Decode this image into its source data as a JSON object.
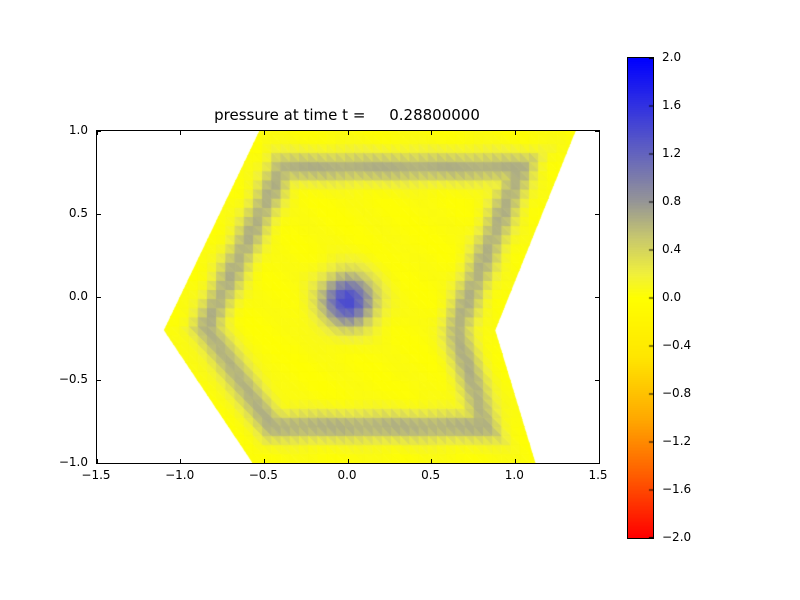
{
  "figure": {
    "background": "#ffffff"
  },
  "chart_data": {
    "type": "heatmap",
    "title": "pressure at time t =     0.28800000",
    "xlabel": "",
    "ylabel": "",
    "xlim": [
      -1.5,
      1.5
    ],
    "ylim": [
      -1.0,
      1.0
    ],
    "xticks": [
      -1.5,
      -1.0,
      -0.5,
      0.0,
      0.5,
      1.0,
      1.5
    ],
    "yticks": [
      1.0,
      0.5,
      0.0,
      -0.5,
      -1.0
    ],
    "grid": false,
    "colorbar": {
      "min": -2.0,
      "max": 2.0,
      "ticks": [
        2.0,
        1.6,
        1.2,
        0.8,
        0.4,
        0.0,
        -0.4,
        -0.8,
        -1.2,
        -1.6,
        -2.0
      ],
      "position": "right"
    },
    "colormap_stops": [
      {
        "value": -2.0,
        "color": "#ff0000"
      },
      {
        "value": -1.5,
        "color": "#ff5a00"
      },
      {
        "value": -1.0,
        "color": "#ffaa00"
      },
      {
        "value": -0.5,
        "color": "#ffe600"
      },
      {
        "value": 0.0,
        "color": "#ffff00"
      },
      {
        "value": 0.2,
        "color": "#f0f03c"
      },
      {
        "value": 0.5,
        "color": "#c8c86e"
      },
      {
        "value": 0.8,
        "color": "#969696"
      },
      {
        "value": 1.2,
        "color": "#6464be"
      },
      {
        "value": 1.6,
        "color": "#3232e1"
      },
      {
        "value": 2.0,
        "color": "#0000ff"
      }
    ],
    "domain_polygon": [
      [
        -1.1,
        -0.2
      ],
      [
        -0.53,
        1.0
      ],
      [
        1.36,
        1.0
      ],
      [
        0.88,
        -0.2
      ],
      [
        1.12,
        -1.0
      ],
      [
        -0.57,
        -1.0
      ]
    ],
    "field_model": {
      "background": 0.03,
      "center_peak": {
        "x": 0.0,
        "y": -0.02,
        "amplitude": 1.4,
        "sigma": 0.16
      },
      "boundary_ring": {
        "distance": 0.22,
        "amplitude": 0.62,
        "width": 0.09
      },
      "mesh_step": 0.055,
      "facet_noise": 0.02
    }
  }
}
